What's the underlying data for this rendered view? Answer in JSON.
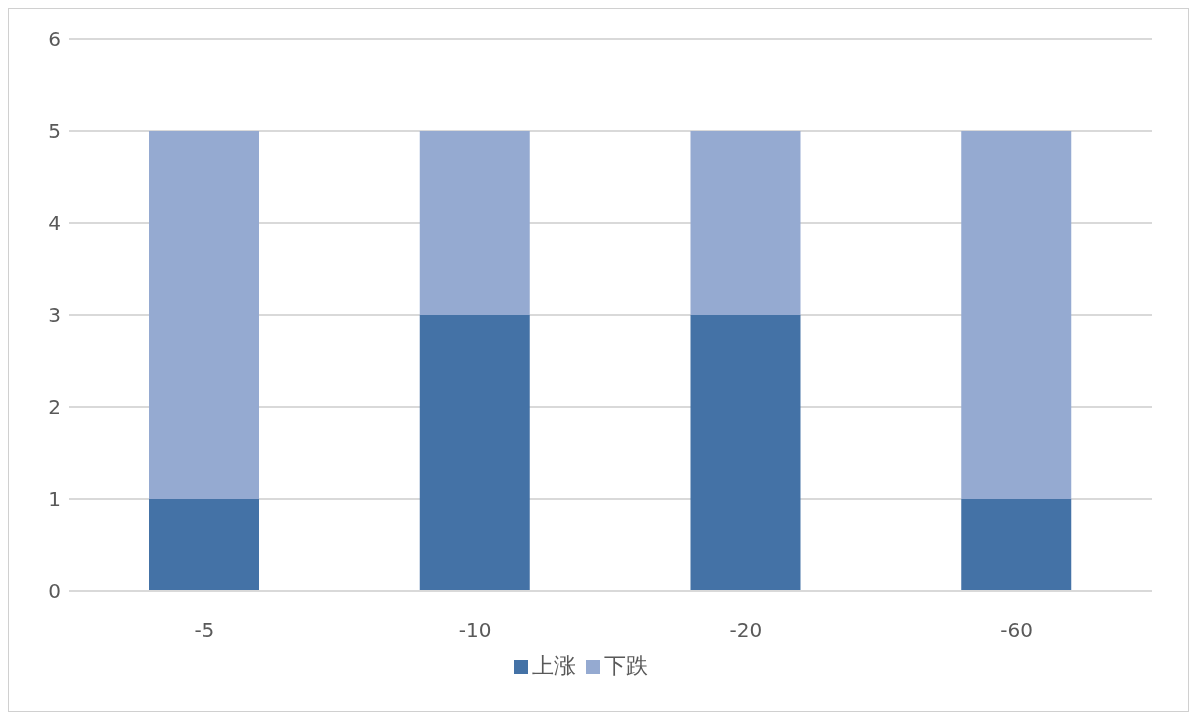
{
  "chart_data": {
    "type": "bar",
    "stacked": true,
    "categories": [
      "-5",
      "-10",
      "-20",
      "-60"
    ],
    "series": [
      {
        "name": "上涨",
        "color": "#4472a6",
        "values": [
          1,
          3,
          3,
          1
        ]
      },
      {
        "name": "下跌",
        "color": "#95aad1",
        "values": [
          4,
          2,
          2,
          4
        ]
      }
    ],
    "ylim": [
      0,
      6
    ],
    "yticks": [
      0,
      1,
      2,
      3,
      4,
      5,
      6
    ],
    "grid": "y",
    "legend": "bottom"
  }
}
